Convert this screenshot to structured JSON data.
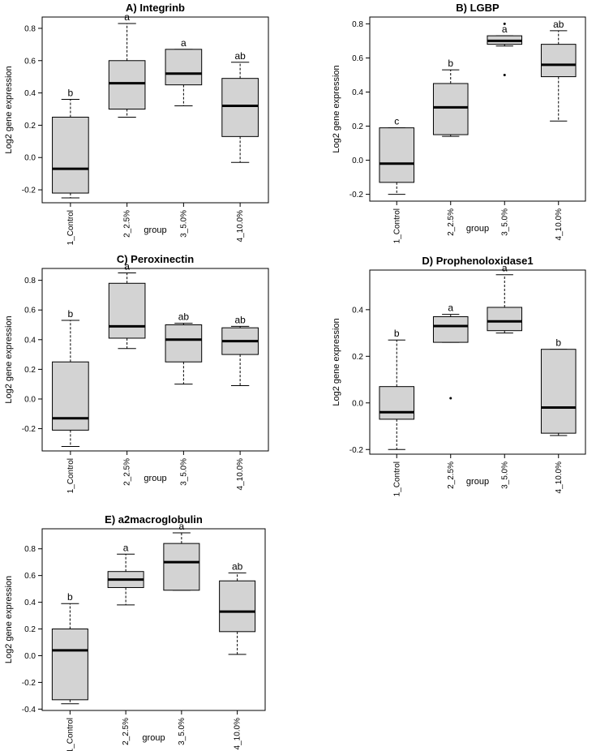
{
  "chart_data": [
    {
      "type": "box",
      "title": "A) Integrinb",
      "xlabel": "group",
      "ylabel": "Log2 gene expression",
      "categories": [
        "1_Control",
        "2_2.5%",
        "3_5.0%",
        "4_10.0%"
      ],
      "yticks": [
        -0.2,
        0.0,
        0.2,
        0.4,
        0.6,
        0.8
      ],
      "ylim": [
        -0.28,
        0.87
      ],
      "boxes": [
        {
          "min": -0.25,
          "q1": -0.22,
          "median": -0.07,
          "q3": 0.25,
          "max": 0.36,
          "outliers": [],
          "letter": "b"
        },
        {
          "min": 0.25,
          "q1": 0.3,
          "median": 0.46,
          "q3": 0.6,
          "max": 0.83,
          "outliers": [],
          "letter": "a"
        },
        {
          "min": 0.32,
          "q1": 0.45,
          "median": 0.52,
          "q3": 0.67,
          "max": 0.67,
          "outliers": [],
          "letter": "a"
        },
        {
          "min": -0.03,
          "q1": 0.13,
          "median": 0.32,
          "q3": 0.49,
          "max": 0.59,
          "outliers": [],
          "letter": "ab"
        }
      ]
    },
    {
      "type": "box",
      "title": "B) LGBP",
      "xlabel": "group",
      "ylabel": "Log2 gene expression",
      "categories": [
        "1_Control",
        "2_2.5%",
        "3_5.0%",
        "4_10.0%"
      ],
      "yticks": [
        -0.2,
        0.0,
        0.2,
        0.4,
        0.6,
        0.8
      ],
      "ylim": [
        -0.24,
        0.84
      ],
      "boxes": [
        {
          "min": -0.2,
          "q1": -0.13,
          "median": -0.02,
          "q3": 0.19,
          "max": 0.19,
          "outliers": [],
          "letter": "c"
        },
        {
          "min": 0.14,
          "q1": 0.15,
          "median": 0.31,
          "q3": 0.45,
          "max": 0.53,
          "outliers": [],
          "letter": "b"
        },
        {
          "min": 0.67,
          "q1": 0.68,
          "median": 0.7,
          "q3": 0.73,
          "max": 0.73,
          "outliers": [
            0.5,
            0.8
          ],
          "letter": "a"
        },
        {
          "min": 0.23,
          "q1": 0.49,
          "median": 0.56,
          "q3": 0.68,
          "max": 0.76,
          "outliers": [],
          "letter": "ab"
        }
      ]
    },
    {
      "type": "box",
      "title": "C) Peroxinectin",
      "xlabel": "group",
      "ylabel": "Log2 gene expression",
      "categories": [
        "1_Control",
        "2_2.5%",
        "3_5.0%",
        "4_10.0%"
      ],
      "yticks": [
        -0.2,
        0.0,
        0.2,
        0.4,
        0.6,
        0.8
      ],
      "ylim": [
        -0.35,
        0.88
      ],
      "boxes": [
        {
          "min": -0.32,
          "q1": -0.21,
          "median": -0.13,
          "q3": 0.25,
          "max": 0.53,
          "outliers": [],
          "letter": "b"
        },
        {
          "min": 0.34,
          "q1": 0.41,
          "median": 0.49,
          "q3": 0.78,
          "max": 0.85,
          "outliers": [],
          "letter": "a"
        },
        {
          "min": 0.1,
          "q1": 0.25,
          "median": 0.4,
          "q3": 0.5,
          "max": 0.51,
          "outliers": [],
          "letter": "ab"
        },
        {
          "min": 0.09,
          "q1": 0.3,
          "median": 0.39,
          "q3": 0.48,
          "max": 0.49,
          "outliers": [],
          "letter": "ab"
        }
      ]
    },
    {
      "type": "box",
      "title": "D) Prophenoloxidase1",
      "xlabel": "group",
      "ylabel": "Log2 gene expression",
      "categories": [
        "1_Control",
        "2_2.5%",
        "3_5.0%",
        "4_10.0%"
      ],
      "yticks": [
        -0.2,
        0.0,
        0.2,
        0.4
      ],
      "ylim": [
        -0.22,
        0.57
      ],
      "boxes": [
        {
          "min": -0.2,
          "q1": -0.07,
          "median": -0.04,
          "q3": 0.07,
          "max": 0.27,
          "outliers": [],
          "letter": "b"
        },
        {
          "min": 0.26,
          "q1": 0.26,
          "median": 0.33,
          "q3": 0.37,
          "max": 0.38,
          "outliers": [
            0.02
          ],
          "letter": "a"
        },
        {
          "min": 0.3,
          "q1": 0.31,
          "median": 0.35,
          "q3": 0.41,
          "max": 0.55,
          "outliers": [],
          "letter": "a"
        },
        {
          "min": -0.14,
          "q1": -0.13,
          "median": -0.02,
          "q3": 0.23,
          "max": 0.23,
          "outliers": [],
          "letter": "b"
        }
      ]
    },
    {
      "type": "box",
      "title": "E) a2macroglobulin",
      "xlabel": "group",
      "ylabel": "Log2 gene expression",
      "categories": [
        "1_Control",
        "2_2.5%",
        "3_5.0%",
        "4_10.0%"
      ],
      "yticks": [
        -0.4,
        -0.2,
        0.0,
        0.2,
        0.4,
        0.6,
        0.8
      ],
      "ylim": [
        -0.41,
        0.95
      ],
      "boxes": [
        {
          "min": -0.36,
          "q1": -0.33,
          "median": 0.04,
          "q3": 0.2,
          "max": 0.39,
          "outliers": [],
          "letter": "b"
        },
        {
          "min": 0.38,
          "q1": 0.51,
          "median": 0.57,
          "q3": 0.63,
          "max": 0.76,
          "outliers": [],
          "letter": "a"
        },
        {
          "min": 0.49,
          "q1": 0.49,
          "median": 0.7,
          "q3": 0.84,
          "max": 0.92,
          "outliers": [],
          "letter": "a"
        },
        {
          "min": 0.01,
          "q1": 0.18,
          "median": 0.33,
          "q3": 0.56,
          "max": 0.62,
          "outliers": [],
          "letter": "ab"
        }
      ]
    }
  ]
}
